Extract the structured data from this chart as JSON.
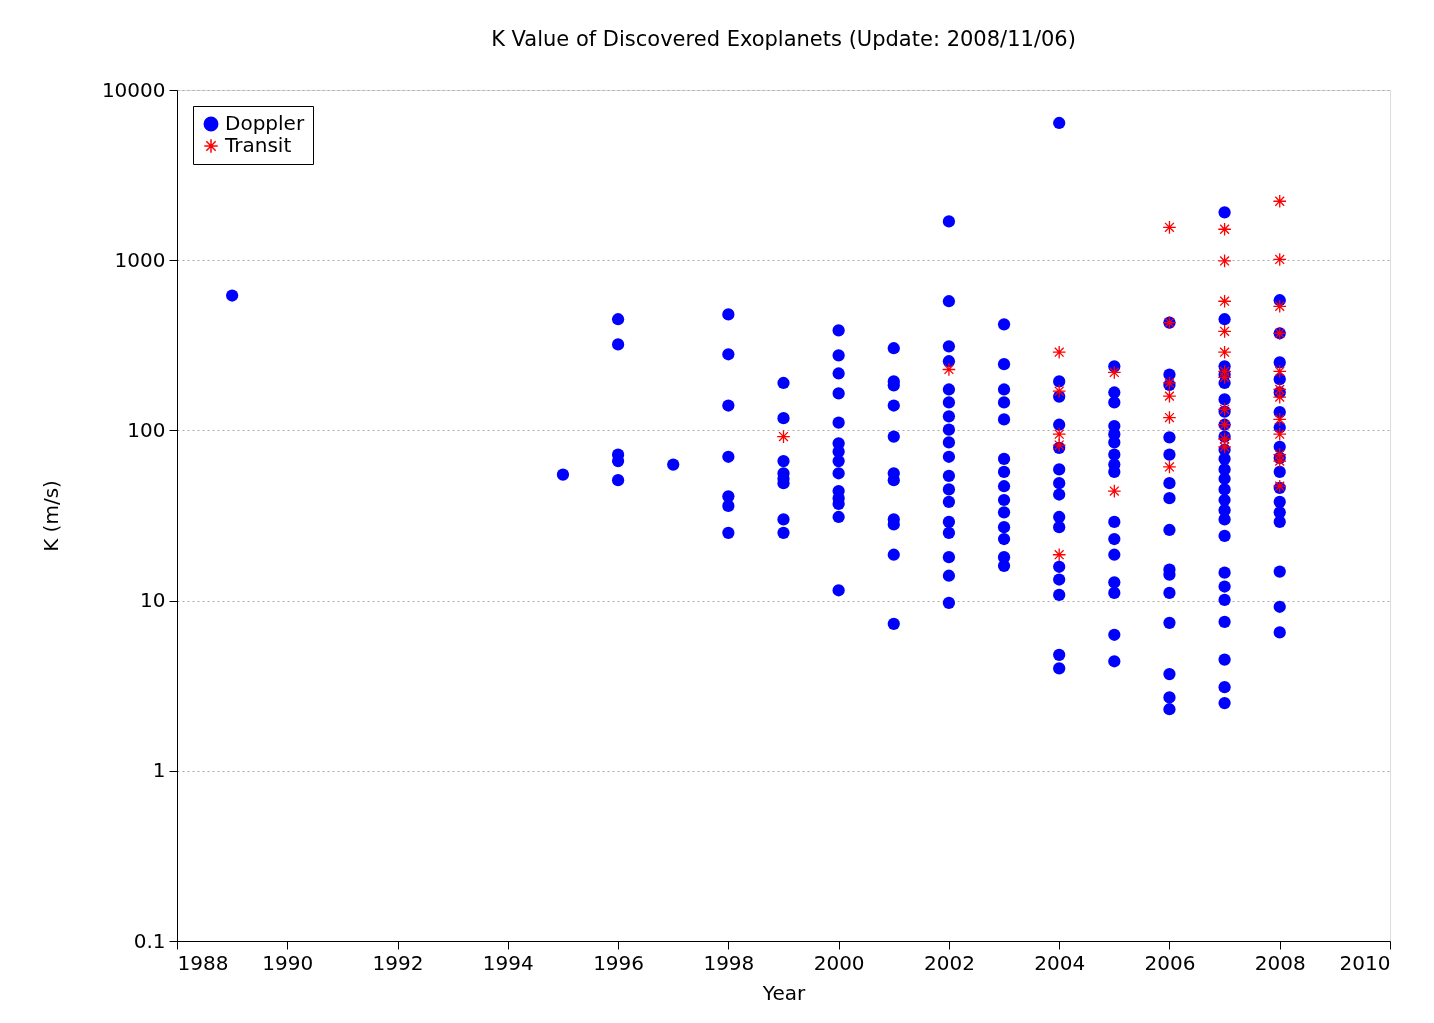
{
  "chart_data": {
    "type": "scatter",
    "title": "K Value of Discovered Exoplanets (Update: 2008/11/06)",
    "xlabel": "Year",
    "ylabel": "K (m/s)",
    "log": "y",
    "xlim": [
      1988,
      2010
    ],
    "xticks": [
      1988,
      1990,
      1992,
      1994,
      1996,
      1998,
      2000,
      2002,
      2004,
      2006,
      2008,
      2010
    ],
    "ylim": [
      0.1,
      10000
    ],
    "yticks": [
      0.1,
      1,
      10,
      100,
      1000,
      10000
    ],
    "grid": "y",
    "legend": "top left",
    "series": [
      {
        "name": "Doppler",
        "color": "#0000ff",
        "marker": "circle",
        "x": [
          1989,
          1995,
          1996,
          1996,
          1996,
          1996,
          1996,
          1997,
          1998,
          1998,
          1998,
          1998,
          1998,
          1998,
          1998,
          1999,
          1999,
          1999,
          1999,
          1999,
          1999,
          1999,
          1999,
          2000,
          2000,
          2000,
          2000,
          2000,
          2000,
          2000,
          2000,
          2000,
          2000,
          2000,
          2000,
          2000,
          2000,
          2001,
          2001,
          2001,
          2001,
          2001,
          2001,
          2001,
          2001,
          2001,
          2001,
          2001,
          2002,
          2002,
          2002,
          2002,
          2002,
          2002,
          2002,
          2002,
          2002,
          2002,
          2002,
          2002,
          2002,
          2002,
          2002,
          2002,
          2002,
          2002,
          2003,
          2003,
          2003,
          2003,
          2003,
          2003,
          2003,
          2003,
          2003,
          2003,
          2003,
          2003,
          2003,
          2003,
          2004,
          2004,
          2004,
          2004,
          2004,
          2004,
          2004,
          2004,
          2004,
          2004,
          2004,
          2004,
          2004,
          2004,
          2004,
          2005,
          2005,
          2005,
          2005,
          2005,
          2005,
          2005,
          2005,
          2005,
          2005,
          2005,
          2005,
          2005,
          2005,
          2005,
          2005,
          2006,
          2006,
          2006,
          2006,
          2006,
          2006,
          2006,
          2006,
          2006,
          2006,
          2006,
          2006,
          2006,
          2006,
          2006,
          2007,
          2007,
          2007,
          2007,
          2007,
          2007,
          2007,
          2007,
          2007,
          2007,
          2007,
          2007,
          2007,
          2007,
          2007,
          2007,
          2007,
          2007,
          2007,
          2007,
          2007,
          2007,
          2007,
          2007,
          2007,
          2008,
          2008,
          2008,
          2008,
          2008,
          2008,
          2008,
          2008,
          2008,
          2008,
          2008,
          2008,
          2008,
          2008,
          2008,
          2008,
          2008
        ],
        "values": [
          620,
          55,
          450,
          320,
          72,
          66,
          51,
          63,
          480,
          280,
          140,
          70,
          41,
          36,
          25,
          190,
          118,
          66,
          56,
          52,
          49,
          30,
          25,
          387,
          276,
          216,
          165,
          111,
          84,
          75,
          66,
          56,
          44,
          40,
          37,
          31,
          11.5,
          304,
          194,
          184,
          140,
          92,
          56,
          51,
          30,
          28,
          18.6,
          7.3,
          1690,
          574,
          312,
          255,
          174,
          146,
          121,
          101,
          85,
          70,
          54,
          45,
          38,
          29,
          25,
          18,
          14,
          9.7,
          420,
          245,
          174,
          146,
          116,
          68,
          57,
          47,
          39,
          33,
          27,
          23,
          18,
          16,
          6400,
          194,
          158,
          108,
          79,
          59,
          49,
          42,
          31,
          27,
          15.8,
          13.3,
          10.8,
          4.8,
          4.0,
          238,
          167,
          146,
          106,
          95,
          85,
          72,
          63,
          57,
          29,
          23,
          18.6,
          12.8,
          11.1,
          6.3,
          4.4,
          430,
          213,
          185,
          91,
          72,
          49,
          40,
          26,
          15.2,
          14.2,
          11.1,
          7.4,
          3.7,
          2.7,
          2.3,
          1910,
          450,
          238,
          213,
          190,
          152,
          129,
          108,
          92,
          77,
          68,
          59,
          52,
          45,
          39,
          34,
          30,
          24,
          14.6,
          12.1,
          10.1,
          7.5,
          4.5,
          3.1,
          2.5,
          582,
          372,
          251,
          200,
          167,
          128,
          104,
          80,
          69,
          57,
          46,
          38,
          33,
          29,
          14.8,
          9.2,
          6.5
        ]
      },
      {
        "name": "Transit",
        "color": "#ff0000",
        "marker": "cross",
        "x": [
          1999,
          2002,
          2004,
          2004,
          2004,
          2004,
          2004,
          2005,
          2005,
          2006,
          2006,
          2006,
          2006,
          2006,
          2006,
          2007,
          2007,
          2007,
          2007,
          2007,
          2007,
          2007,
          2007,
          2007,
          2007,
          2007,
          2008,
          2008,
          2008,
          2008,
          2008,
          2008,
          2008,
          2008,
          2008,
          2008,
          2008,
          2008
        ],
        "values": [
          92,
          228,
          288,
          170,
          95,
          82,
          18.6,
          219,
          44,
          1560,
          430,
          190,
          159,
          119,
          61,
          1520,
          990,
          574,
          382,
          288,
          222,
          205,
          133,
          108,
          89,
          80,
          2220,
          1010,
          536,
          372,
          222,
          174,
          157,
          116,
          95,
          72,
          66,
          47
        ]
      }
    ]
  }
}
